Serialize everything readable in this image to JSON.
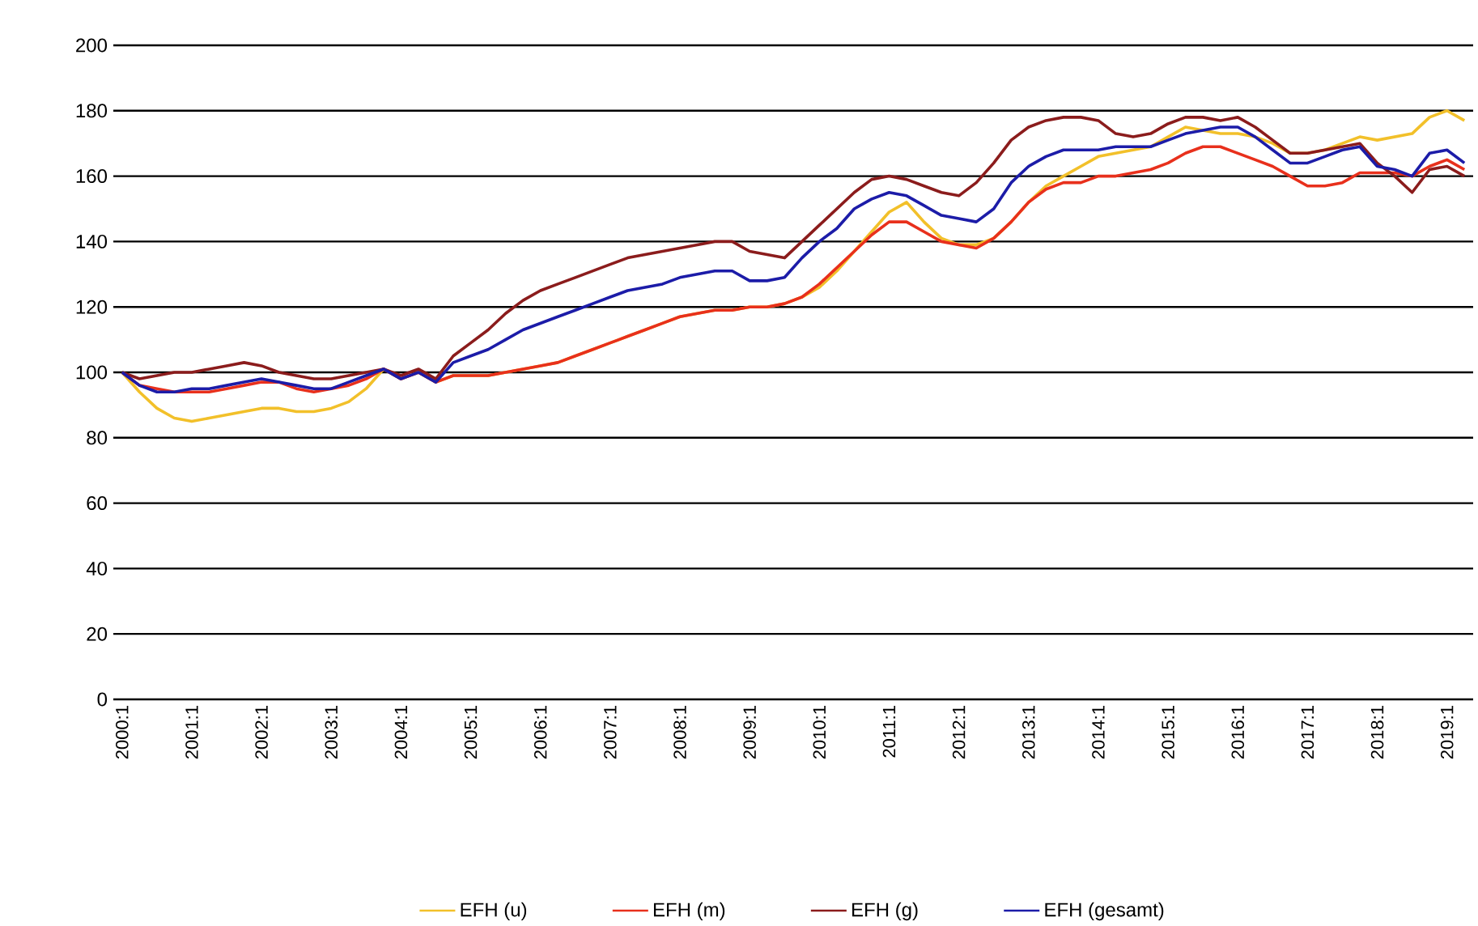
{
  "chart_data": {
    "type": "line",
    "categories": [
      "2000:1",
      null,
      null,
      null,
      "2001:1",
      null,
      null,
      null,
      "2002:1",
      null,
      null,
      null,
      "2003:1",
      null,
      null,
      null,
      "2004:1",
      null,
      null,
      null,
      "2005:1",
      null,
      null,
      null,
      "2006:1",
      null,
      null,
      null,
      "2007:1",
      null,
      null,
      null,
      "2008:1",
      null,
      null,
      null,
      "2009:1",
      null,
      null,
      null,
      "2010:1",
      null,
      null,
      null,
      "2011:1",
      null,
      null,
      null,
      "2012:1",
      null,
      null,
      null,
      "2013:1",
      null,
      null,
      null,
      "2014:1",
      null,
      null,
      null,
      "2015:1",
      null,
      null,
      null,
      "2016:1",
      null,
      null,
      null,
      "2017:1",
      null,
      null,
      null,
      "2018:1",
      null,
      null,
      null,
      "2019:1",
      null
    ],
    "series": [
      {
        "name": "EFH (u)",
        "color": "#f2c02a",
        "values": [
          100,
          94,
          89,
          86,
          85,
          86,
          87,
          88,
          89,
          89,
          88,
          88,
          89,
          91,
          95,
          101,
          98,
          100,
          97,
          99,
          99,
          99,
          100,
          101,
          102,
          103,
          105,
          107,
          109,
          111,
          113,
          115,
          117,
          118,
          119,
          119,
          120,
          120,
          121,
          123,
          126,
          131,
          137,
          143,
          149,
          152,
          146,
          141,
          139,
          139,
          141,
          146,
          152,
          157,
          160,
          163,
          166,
          167,
          168,
          169,
          172,
          175,
          174,
          173,
          173,
          172,
          170,
          167,
          167,
          168,
          170,
          172,
          171,
          172,
          173,
          178,
          180,
          177
        ]
      },
      {
        "name": "EFH (m)",
        "color": "#e8301c",
        "values": [
          100,
          96,
          95,
          94,
          94,
          94,
          95,
          96,
          97,
          97,
          95,
          94,
          95,
          96,
          98,
          101,
          98,
          100,
          97,
          99,
          99,
          99,
          100,
          101,
          102,
          103,
          105,
          107,
          109,
          111,
          113,
          115,
          117,
          118,
          119,
          119,
          120,
          120,
          121,
          123,
          127,
          132,
          137,
          142,
          146,
          146,
          143,
          140,
          139,
          138,
          141,
          146,
          152,
          156,
          158,
          158,
          160,
          160,
          161,
          162,
          164,
          167,
          169,
          169,
          167,
          165,
          163,
          160,
          157,
          157,
          158,
          161,
          161,
          161,
          160,
          163,
          165,
          162
        ]
      },
      {
        "name": "EFH (g)",
        "color": "#8b1c1c",
        "values": [
          100,
          98,
          99,
          100,
          100,
          101,
          102,
          103,
          102,
          100,
          99,
          98,
          98,
          99,
          100,
          101,
          99,
          101,
          98,
          105,
          109,
          113,
          118,
          122,
          125,
          127,
          129,
          131,
          133,
          135,
          136,
          137,
          138,
          139,
          140,
          140,
          137,
          136,
          135,
          140,
          145,
          150,
          155,
          159,
          160,
          159,
          157,
          155,
          154,
          158,
          164,
          171,
          175,
          177,
          178,
          178,
          177,
          173,
          172,
          173,
          176,
          178,
          178,
          177,
          178,
          175,
          171,
          167,
          167,
          168,
          169,
          170,
          164,
          160,
          155,
          162,
          163,
          160
        ]
      },
      {
        "name": "EFH (gesamt)",
        "color": "#1c1ca8",
        "values": [
          100,
          96,
          94,
          94,
          95,
          95,
          96,
          97,
          98,
          97,
          96,
          95,
          95,
          97,
          99,
          101,
          98,
          100,
          97,
          103,
          105,
          107,
          110,
          113,
          115,
          117,
          119,
          121,
          123,
          125,
          126,
          127,
          129,
          130,
          131,
          131,
          128,
          128,
          129,
          135,
          140,
          144,
          150,
          153,
          155,
          154,
          151,
          148,
          147,
          146,
          150,
          158,
          163,
          166,
          168,
          168,
          168,
          169,
          169,
          169,
          171,
          173,
          174,
          175,
          175,
          172,
          168,
          164,
          164,
          166,
          168,
          169,
          163,
          162,
          160,
          167,
          168,
          164
        ]
      }
    ],
    "ylim": [
      0,
      200
    ],
    "yticks": [
      0,
      20,
      40,
      60,
      80,
      100,
      120,
      140,
      160,
      180,
      200
    ],
    "grid": "y",
    "legend": "bottom",
    "marker": "none",
    "line_style": "solid"
  }
}
